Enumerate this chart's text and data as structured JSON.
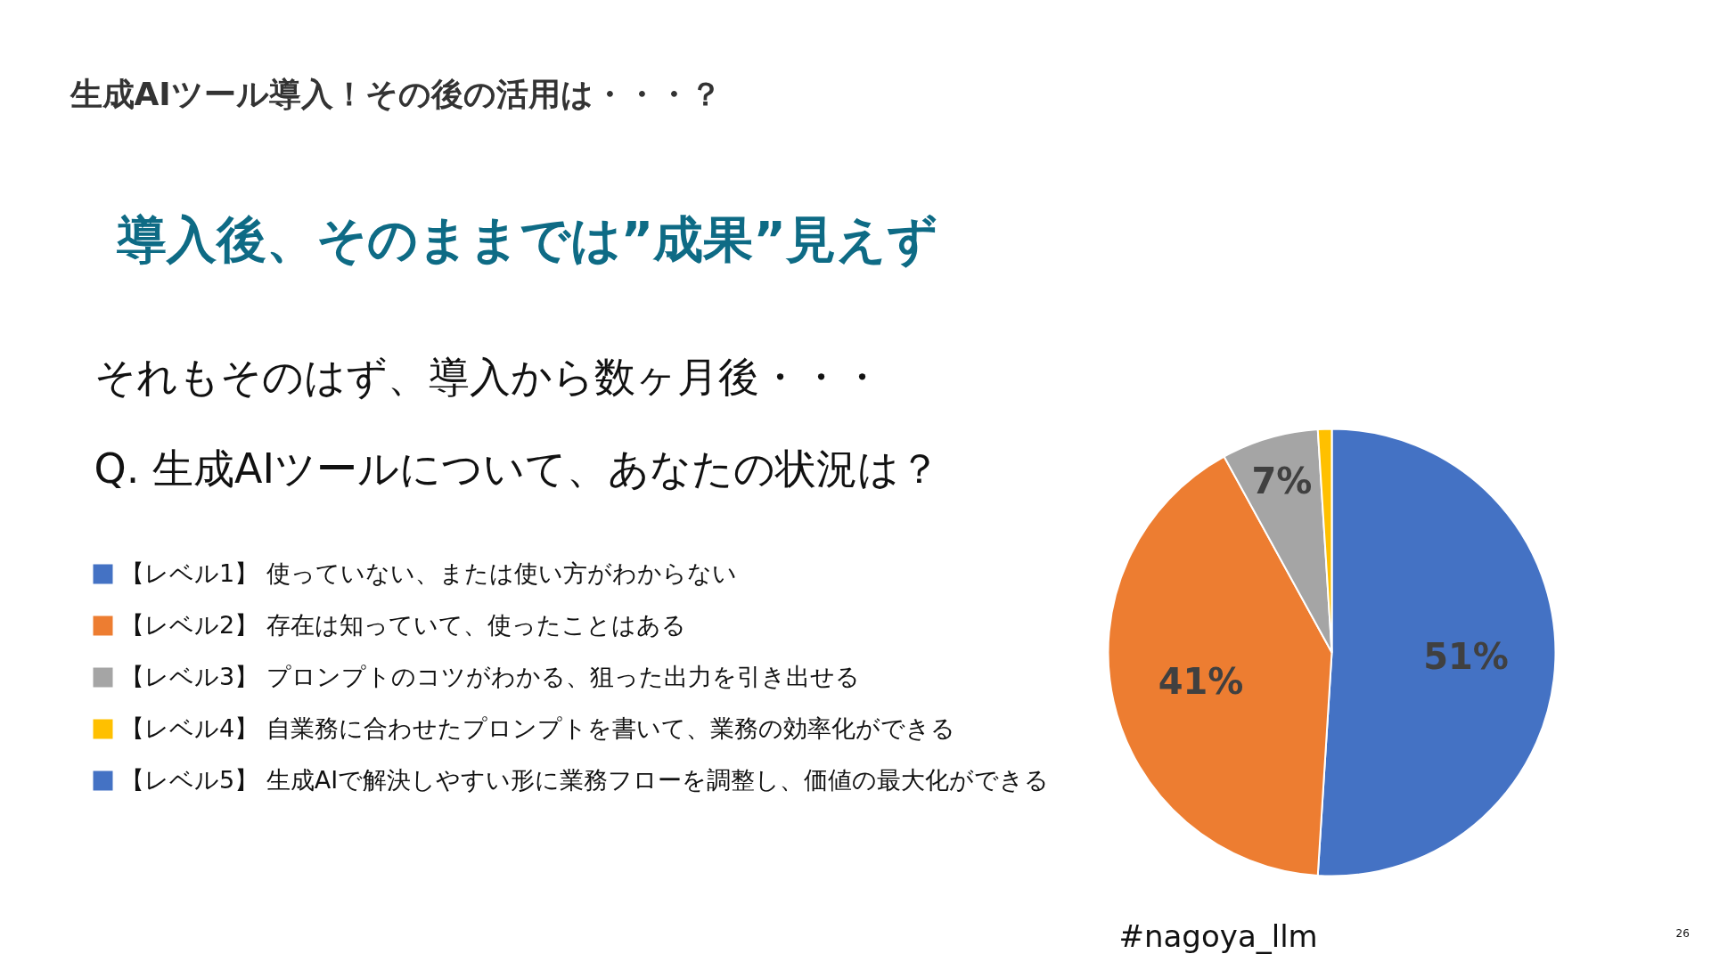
{
  "chart_data": {
    "type": "pie",
    "title": "生成AIツール導入！その後の活用は・・・？",
    "subtitle": "導入後、そのままでは”成果”見えず",
    "categories": [
      "【レベル1】 使っていない、または使い方がわからない",
      "【レベル2】 存在は知っていて、使ったことはある",
      "【レベル3】 プロンプトのコツがわかる、狙った出力を引き出せる",
      "【レベル4】 自業務に合わせたプロンプトを書いて、業務の効率化ができる",
      "【レベル5】 生成AIで解決しやすい形に業務フローを調整し、価値の最大化ができる"
    ],
    "values": [
      51,
      41,
      7,
      1,
      0
    ],
    "colors": [
      "#4472c4",
      "#ed7d31",
      "#a5a5a5",
      "#ffc000",
      "#4472c4"
    ],
    "value_labels": [
      "51%",
      "41%",
      "7%",
      null,
      null
    ],
    "legend": "left",
    "annotations": [
      "それもそのはず、導入から数ヶ月後・・・",
      "Q. 生成AIツールについて、あなたの状況は？",
      "#nagoya_llm",
      "26"
    ]
  }
}
